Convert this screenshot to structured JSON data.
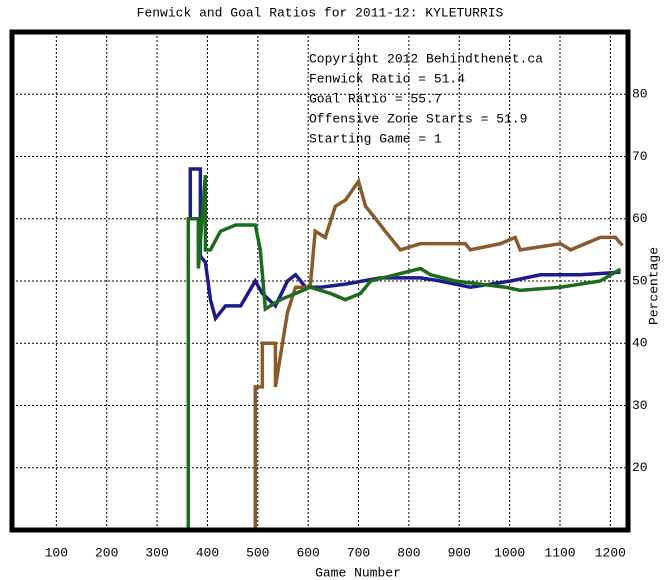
{
  "chart_data": {
    "type": "line",
    "title": "Fenwick and Goal Ratios for 2011-12: KYLETURRIS",
    "x_label": "Game Number",
    "y_label": "Percentage",
    "annotations": [
      "Copyright 2012 Behindthenet.ca",
      "Starting Game = 1"
    ],
    "xlim": [
      12,
      1235
    ],
    "ylim": [
      10,
      90
    ],
    "xticks": [
      100,
      200,
      300,
      400,
      500,
      600,
      700,
      800,
      900,
      1000,
      1100,
      1200
    ],
    "yticks": [
      20,
      30,
      40,
      50,
      60,
      70,
      80
    ],
    "grid": true,
    "series": [
      {
        "name": "Fenwick Ratio = 51.4",
        "color": "#1c1c8a",
        "x": [
          366,
          366,
          386,
          386,
          396,
          406,
          416,
          436,
          466,
          495,
          509,
          535,
          559,
          575,
          595,
          625,
          674,
          743,
          823,
          862,
          922,
          1002,
          1061,
          1141,
          1220
        ],
        "values": [
          60,
          68,
          68,
          54,
          53,
          47,
          44,
          46,
          46,
          50,
          48,
          46,
          50,
          51,
          49,
          49,
          49.5,
          50.5,
          50.5,
          50,
          49,
          50,
          51,
          51,
          51.4
        ]
      },
      {
        "name": "Goal Ratio = 55.7",
        "color": "#8b5a2b",
        "x": [
          495,
          495,
          509,
          509,
          535,
          535,
          559,
          575,
          604,
          614,
          634,
          654,
          674,
          700,
          714,
          734,
          753,
          783,
          823,
          912,
          922,
          982,
          1011,
          1021,
          1101,
          1121,
          1180,
          1210,
          1224
        ],
        "values": [
          10,
          33,
          33,
          40,
          40,
          33,
          45,
          49,
          49,
          58,
          57,
          62,
          63,
          66,
          62,
          60,
          58,
          55,
          56,
          56,
          55,
          56,
          57,
          55,
          56,
          55,
          57,
          57,
          55.7
        ]
      },
      {
        "name": "Offensive Zone Starts = 51.9",
        "color": "#1d6b1d",
        "x": [
          362,
          362,
          382,
          382,
          396,
          396,
          406,
          426,
          456,
          495,
          505,
          515,
          545,
          575,
          604,
          644,
          674,
          704,
          724,
          773,
          823,
          843,
          892,
          942,
          992,
          1021,
          1101,
          1180,
          1220
        ],
        "values": [
          10,
          60,
          60,
          52,
          67,
          55,
          55,
          58,
          59,
          59,
          55,
          45.5,
          47,
          48,
          49,
          48,
          47,
          48,
          50,
          51,
          52,
          51,
          50,
          49.5,
          49,
          48.5,
          49,
          50,
          51.9
        ]
      }
    ]
  }
}
